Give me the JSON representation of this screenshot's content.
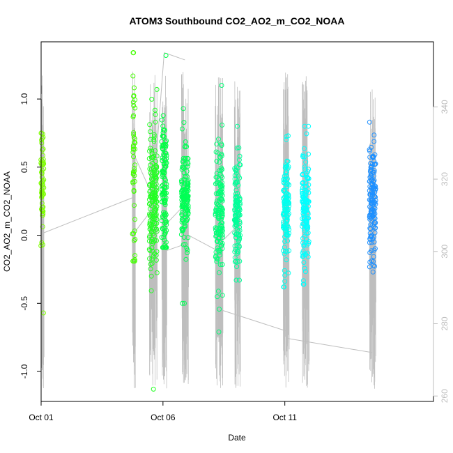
{
  "chart_data": {
    "type": "scatter",
    "title": "ATOM3 Southbound CO2_AO2_m_CO2_NOAA",
    "xlabel": "Date",
    "ylabel": "CO2_AO2_m_CO2_NOAA",
    "xlim": [
      0.0,
      16.1
    ],
    "ylim": [
      -1.22,
      1.42
    ],
    "y2lim": [
      258.5,
      358
    ],
    "x_ticks": [
      {
        "v": 0,
        "label": "Oct 01"
      },
      {
        "v": 5,
        "label": "Oct 06"
      },
      {
        "v": 10,
        "label": "Oct 11"
      }
    ],
    "y_ticks": [
      {
        "v": -1.0,
        "label": "-1.0"
      },
      {
        "v": -0.5,
        "label": "-0.5"
      },
      {
        "v": 0.0,
        "label": "0.0"
      },
      {
        "v": 0.5,
        "label": "0.5"
      },
      {
        "v": 1.0,
        "label": "1.0"
      }
    ],
    "y2_ticks": [
      {
        "v": 260,
        "label": "260"
      },
      {
        "v": 280,
        "label": "280"
      },
      {
        "v": 300,
        "label": "300"
      },
      {
        "v": 320,
        "label": "320"
      },
      {
        "v": 340,
        "label": "340"
      }
    ],
    "grid": false,
    "legend": "none",
    "colors": {
      "flight_1": "#7fff00",
      "flight_2": "#2bff2b",
      "flight_3": "#00ff6a",
      "flight_4": "#00ffb0",
      "flight_5": "#00f5ff",
      "flight_6": "#1e90ff",
      "pressure_line": "#bebebe"
    },
    "flights": [
      {
        "x_center": 0.05,
        "x_spread": 0.06,
        "color": "#7fff00",
        "y_mean": 0.35,
        "y_sd": 0.2,
        "n": 60,
        "y_min": -0.57,
        "y_max": 0.75
      },
      {
        "x_center": 3.8,
        "x_spread": 0.06,
        "color": "#44ff00",
        "y_mean": 0.55,
        "y_sd": 0.35,
        "n": 50,
        "y_min": -0.19,
        "y_max": 1.34
      },
      {
        "x_center": 4.6,
        "x_spread": 0.16,
        "color": "#22ff22",
        "y_mean": 0.25,
        "y_sd": 0.25,
        "n": 170,
        "y_min": -1.13,
        "y_max": 1.07
      },
      {
        "x_center": 5.05,
        "x_spread": 0.1,
        "color": "#00ff44",
        "y_mean": 0.4,
        "y_sd": 0.25,
        "n": 120,
        "y_min": -0.09,
        "y_max": 1.32
      },
      {
        "x_center": 5.9,
        "x_spread": 0.14,
        "color": "#00ff55",
        "y_mean": 0.27,
        "y_sd": 0.2,
        "n": 150,
        "y_min": -0.5,
        "y_max": 0.93
      },
      {
        "x_center": 7.3,
        "x_spread": 0.15,
        "color": "#00ff77",
        "y_mean": 0.2,
        "y_sd": 0.22,
        "n": 150,
        "y_min": -0.71,
        "y_max": 1.1
      },
      {
        "x_center": 8.05,
        "x_spread": 0.12,
        "color": "#00ff99",
        "y_mean": 0.17,
        "y_sd": 0.2,
        "n": 120,
        "y_min": -0.33,
        "y_max": 0.8
      },
      {
        "x_center": 10.05,
        "x_spread": 0.12,
        "color": "#00ffee",
        "y_mean": 0.2,
        "y_sd": 0.22,
        "n": 130,
        "y_min": -0.38,
        "y_max": 0.73
      },
      {
        "x_center": 10.85,
        "x_spread": 0.14,
        "color": "#00ffff",
        "y_mean": 0.22,
        "y_sd": 0.22,
        "n": 140,
        "y_min": -0.36,
        "y_max": 0.8
      },
      {
        "x_center": 13.6,
        "x_spread": 0.13,
        "color": "#1e90ff",
        "y_mean": 0.25,
        "y_sd": 0.22,
        "n": 150,
        "y_min": -0.27,
        "y_max": 0.83
      }
    ],
    "pressure_segments": [
      [
        [
          0.05,
          305
        ],
        [
          3.8,
          315
        ]
      ],
      [
        [
          3.8,
          305
        ],
        [
          4.6,
          312
        ]
      ],
      [
        [
          4.6,
          315
        ],
        [
          5.05,
          355
        ]
      ],
      [
        [
          5.05,
          355
        ],
        [
          5.9,
          353
        ]
      ],
      [
        [
          5.05,
          300
        ],
        [
          5.9,
          302
        ]
      ],
      [
        [
          5.9,
          305
        ],
        [
          7.3,
          300
        ]
      ],
      [
        [
          7.3,
          284
        ],
        [
          10.05,
          278
        ]
      ],
      [
        [
          10.05,
          276
        ],
        [
          13.6,
          272
        ]
      ],
      [
        [
          5.05,
          307
        ],
        [
          5.9,
          313
        ]
      ],
      [
        [
          7.3,
          302
        ],
        [
          8.05,
          307
        ]
      ],
      [
        [
          3.8,
          327
        ],
        [
          4.6,
          315
        ]
      ]
    ]
  }
}
